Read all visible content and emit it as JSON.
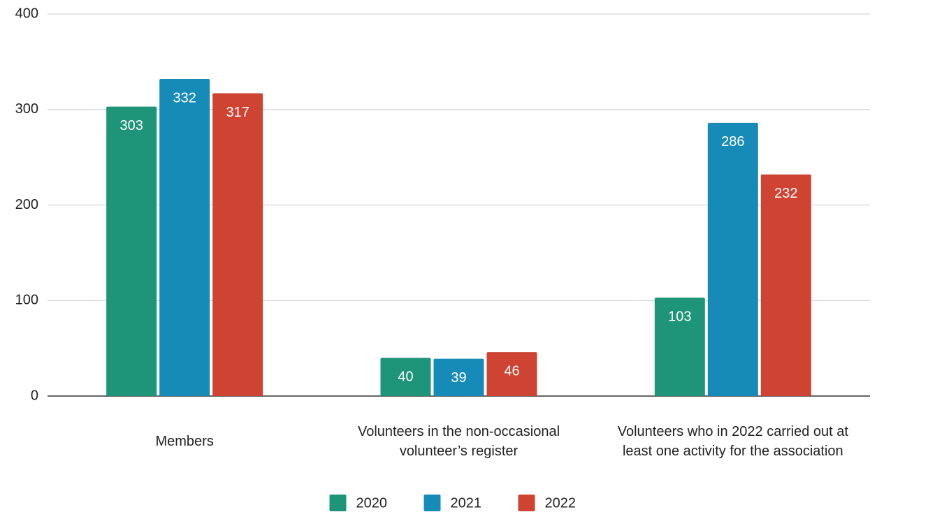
{
  "chart_data": {
    "type": "bar",
    "categories": [
      "Members",
      "Volunteers in the non-occasional volunteer’s register",
      "Volunteers who in 2022 carried out at least one activity for the association"
    ],
    "series": [
      {
        "name": "2020",
        "color": "#1e9478",
        "values": [
          303,
          40,
          103
        ]
      },
      {
        "name": "2021",
        "color": "#178bb8",
        "values": [
          332,
          39,
          286
        ]
      },
      {
        "name": "2022",
        "color": "#cf4333",
        "values": [
          317,
          46,
          232
        ]
      }
    ],
    "ylim": [
      0,
      400
    ],
    "yticks": [
      0,
      100,
      200,
      300,
      400
    ],
    "grid": true,
    "legend": "bottom"
  }
}
